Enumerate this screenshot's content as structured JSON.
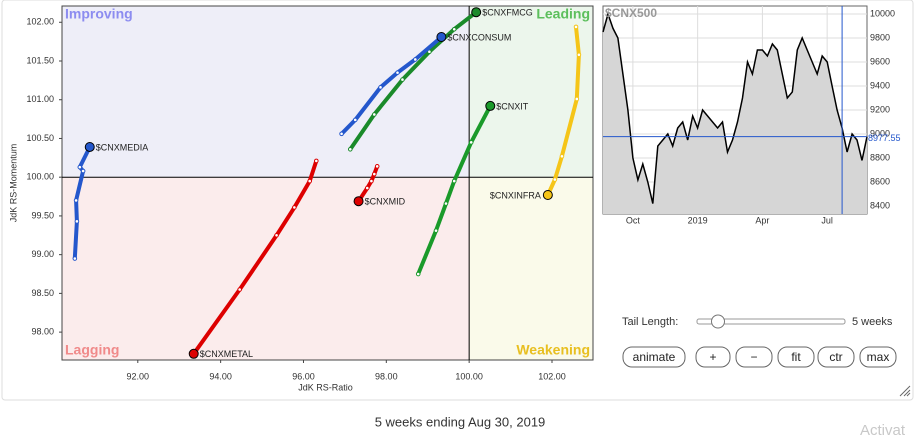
{
  "chart_data": [
    {
      "type": "rrg",
      "x_label": "JdK RS-Ratio",
      "y_label": "JdK RS-Momentum",
      "xlim": [
        90.17,
        102.99
      ],
      "ylim": [
        97.64,
        102.21
      ],
      "xticks": [
        {
          "value": 92,
          "label": "92.00"
        },
        {
          "value": 94,
          "label": "94.00"
        },
        {
          "value": 96,
          "label": "96.00"
        },
        {
          "value": 98,
          "label": "98.00"
        },
        {
          "value": 100,
          "label": "100.00"
        },
        {
          "value": 102,
          "label": "102.00"
        }
      ],
      "yticks": [
        {
          "value": 98,
          "label": "98.00"
        },
        {
          "value": 98.5,
          "label": "98.50"
        },
        {
          "value": 99,
          "label": "99.00"
        },
        {
          "value": 99.5,
          "label": "99.50"
        },
        {
          "value": 100,
          "label": "100.00"
        },
        {
          "value": 100.5,
          "label": "100.50"
        },
        {
          "value": 101,
          "label": "101.00"
        },
        {
          "value": 101.5,
          "label": "101.50"
        },
        {
          "value": 102,
          "label": "102.00"
        }
      ],
      "quadrant_center": {
        "x": 100,
        "y": 100
      },
      "quadrants": [
        {
          "name": "Improving",
          "color": "#8c8cf0",
          "fill": "#eeeef8"
        },
        {
          "name": "Leading",
          "color": "#5cbf5c",
          "fill": "#ecf6ec"
        },
        {
          "name": "Lagging",
          "color": "#f08a8a",
          "fill": "#fbecec"
        },
        {
          "name": "Weakening",
          "color": "#e8bf20",
          "fill": "#fafaea"
        }
      ],
      "series": [
        {
          "name": "$CNXMEDIA",
          "color": "#2457cc",
          "x": [
            90.48,
            90.53,
            90.51,
            90.68,
            90.6,
            90.84
          ],
          "y": [
            98.95,
            99.43,
            99.7,
            100.08,
            100.13,
            100.39
          ]
        },
        {
          "name": "$CNXFMCG",
          "color": "#1a8a2a",
          "x": [
            97.13,
            97.71,
            98.39,
            99.04,
            99.64,
            100.17
          ],
          "y": [
            100.36,
            100.81,
            101.26,
            101.62,
            101.91,
            102.13
          ]
        },
        {
          "name": "$CNXCONSUM",
          "color": "#2457cc",
          "x": [
            96.92,
            97.25,
            97.86,
            98.27,
            98.7,
            99.33
          ],
          "y": [
            100.56,
            100.74,
            101.16,
            101.35,
            101.52,
            101.81
          ]
        },
        {
          "name": "$CNXIT",
          "color": "#1a9a2a",
          "x": [
            98.77,
            99.2,
            99.44,
            99.64,
            100.05,
            100.51
          ],
          "y": [
            98.75,
            99.31,
            99.66,
            99.95,
            100.45,
            100.92
          ]
        },
        {
          "name": "$CNXINFRA",
          "color": "#f5c518",
          "x": [
            102.58,
            102.65,
            102.6,
            102.24,
            102.07,
            101.9
          ],
          "y": [
            101.94,
            101.58,
            101.01,
            100.27,
            99.97,
            99.77
          ]
        },
        {
          "name": "$CNXMID",
          "color": "#dd0000",
          "x": [
            97.78,
            97.71,
            97.64,
            97.54,
            97.33
          ],
          "y": [
            100.14,
            100.04,
            99.95,
            99.86,
            99.69
          ]
        },
        {
          "name": "$CNXMETAL",
          "color": "#dd0000",
          "x": [
            96.31,
            96.15,
            95.78,
            95.35,
            94.46,
            93.35
          ],
          "y": [
            100.21,
            99.95,
            99.61,
            99.25,
            98.55,
            97.72
          ]
        }
      ]
    },
    {
      "type": "line",
      "title": "$CNX500",
      "color": "#000000",
      "x": [
        0,
        1,
        2,
        3,
        4,
        5,
        6,
        7,
        8,
        9,
        10,
        11,
        12,
        13,
        14,
        15,
        16,
        17,
        18,
        19,
        20,
        21,
        22,
        23,
        24,
        25,
        26,
        27,
        28,
        29,
        30,
        31,
        32,
        33,
        34,
        35,
        36,
        37,
        38,
        39,
        40,
        41,
        42,
        43,
        44,
        45,
        46,
        47,
        48,
        49,
        50,
        51,
        52,
        53
      ],
      "values": [
        9850,
        10000,
        9880,
        9800,
        9500,
        9200,
        8800,
        8617,
        8750,
        8600,
        8420,
        8900,
        8950,
        9000,
        8900,
        9050,
        9100,
        8950,
        9150,
        9050,
        9200,
        9150,
        9100,
        9050,
        9100,
        8850,
        8950,
        9100,
        9300,
        9600,
        9500,
        9700,
        9700,
        9650,
        9750,
        9700,
        9500,
        9300,
        9350,
        9700,
        9800,
        9700,
        9600,
        9500,
        9650,
        9600,
        9400,
        9200,
        9050,
        8850,
        9000,
        8950,
        8780,
        8977.55
      ],
      "xlim": [
        0,
        53
      ],
      "ylim": [
        8333,
        10067
      ],
      "xticks": [
        {
          "value": 6,
          "label": "Oct"
        },
        {
          "value": 19,
          "label": "2019"
        },
        {
          "value": 32,
          "label": "Apr"
        },
        {
          "value": 45,
          "label": "Jul"
        }
      ],
      "yticks": [
        8400,
        8600,
        8800,
        9000,
        9200,
        9400,
        9600,
        9800,
        10000
      ],
      "current_value": 8977.55,
      "marker_x": 48,
      "grid": true
    }
  ],
  "controls": {
    "tail_label": "Tail Length:",
    "tail_value": "5 weeks",
    "buttons": [
      "animate",
      "+",
      "−",
      "fit",
      "ctr",
      "max"
    ]
  },
  "footer": "5 weeks ending Aug 30, 2019",
  "watermark": "Activat"
}
